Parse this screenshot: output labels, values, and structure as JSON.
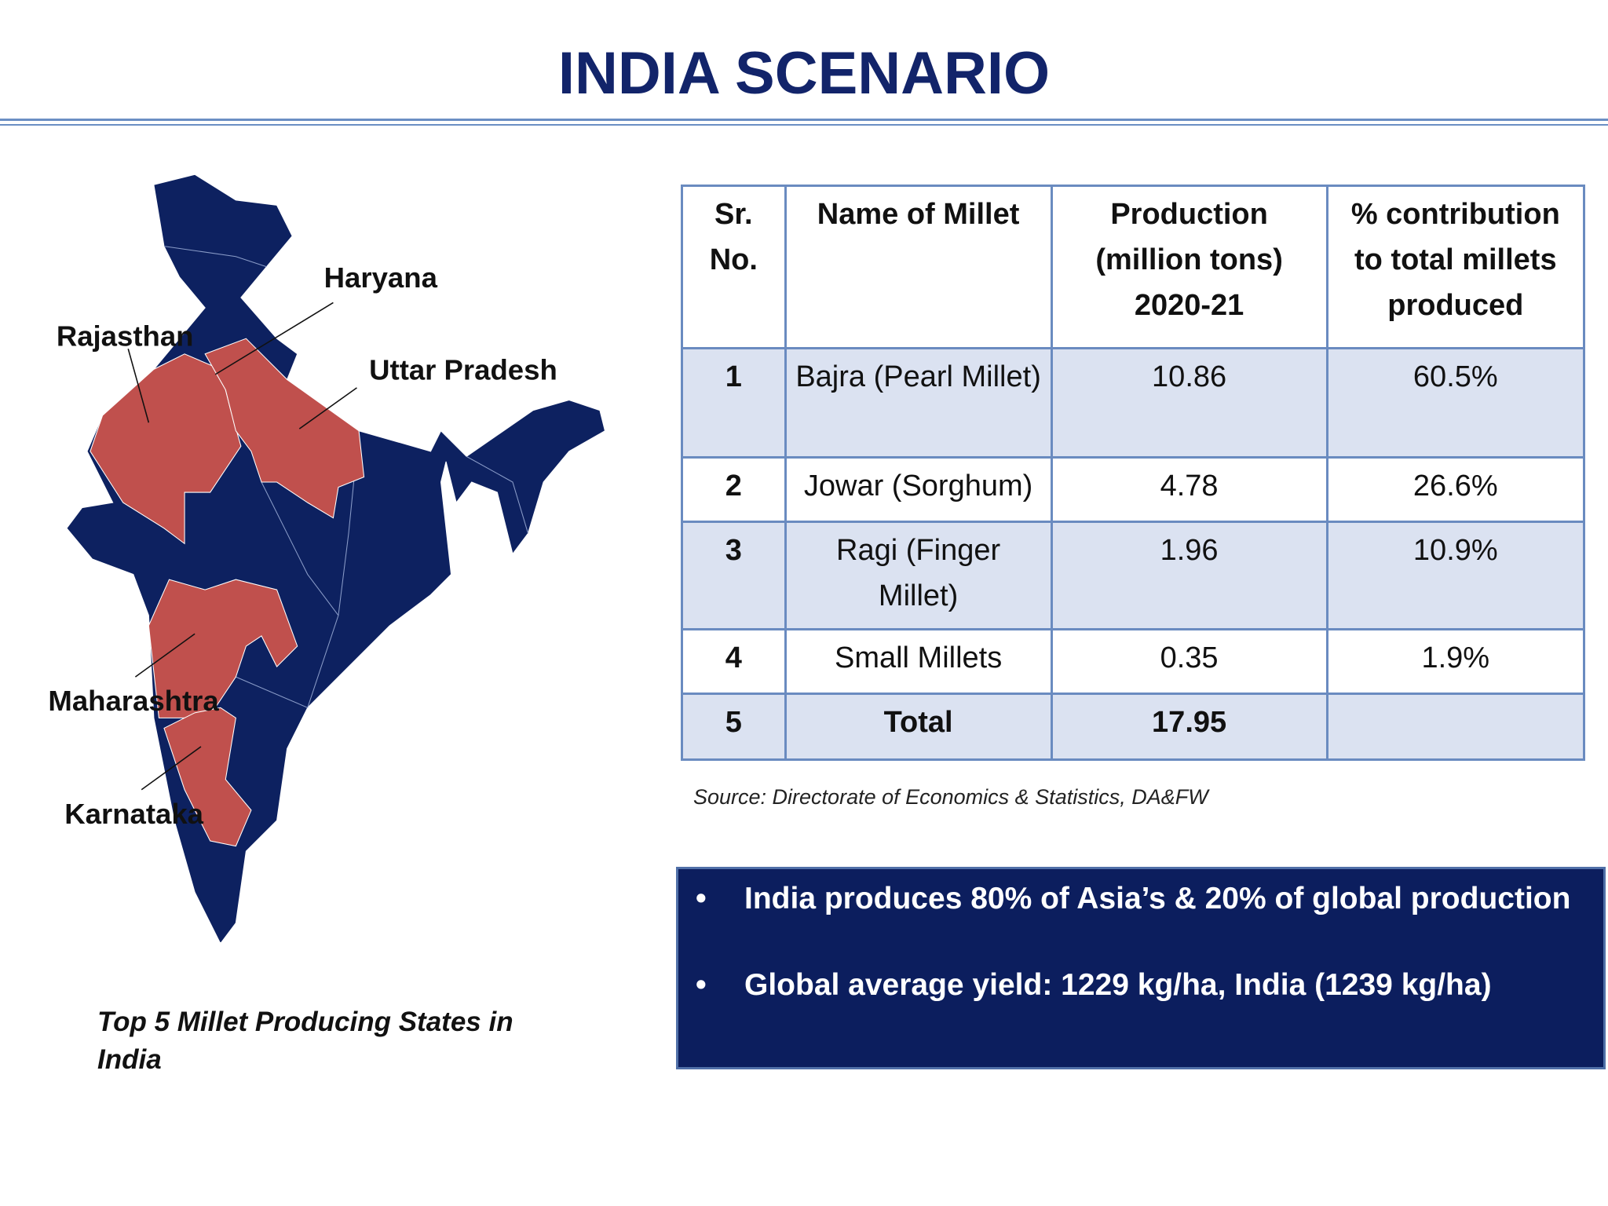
{
  "header": {
    "title": "INDIA SCENARIO"
  },
  "map": {
    "labels": [
      "Haryana",
      "Rajasthan",
      "Uttar Pradesh",
      "Maharashtra",
      "Karnataka"
    ],
    "caption": "Top 5 Millet Producing States in India"
  },
  "table": {
    "columns": [
      "Sr. No.",
      "Name of Millet",
      "Production (million tons) 2020-21",
      "% contribution to total millets produced"
    ],
    "rows": [
      [
        "1",
        "Bajra (Pearl Millet)",
        "10.86",
        "60.5%"
      ],
      [
        "2",
        "Jowar (Sorghum)",
        "4.78",
        "26.6%"
      ],
      [
        "3",
        "Ragi (Finger Millet)",
        "1.96",
        "10.9%"
      ],
      [
        "4",
        "Small Millets",
        "0.35",
        "1.9%"
      ],
      [
        "5",
        "Total",
        "17.95"
      ]
    ]
  },
  "source": "Source: Directorate of Economics & Statistics, DA&FW",
  "bullets": [
    "India produces 80% of Asia’s & 20% of global production",
    "Global average yield: 1229 kg/ha, India (1239 kg/ha)"
  ]
}
